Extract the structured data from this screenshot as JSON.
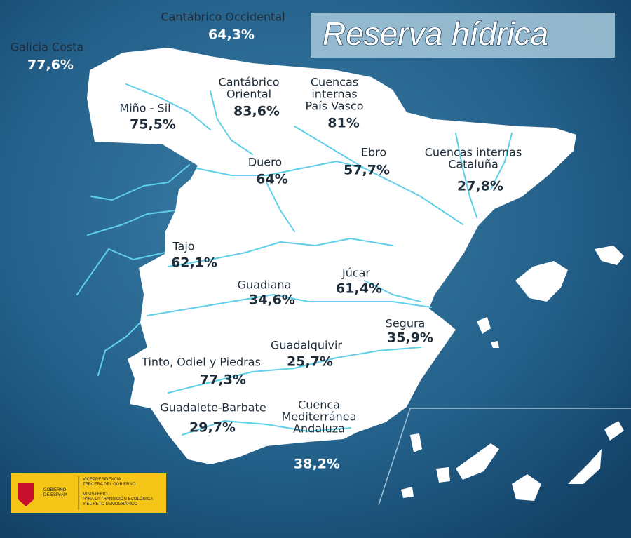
{
  "title": "Reserva hídrica",
  "basins": [
    {
      "name": [
        "Cantábrico Occidental"
      ],
      "value": "64,3%"
    },
    {
      "name": [
        "Galicia Costa"
      ],
      "value": "77,6%"
    },
    {
      "name": [
        "Miño - Sil"
      ],
      "value": "75,5%"
    },
    {
      "name": [
        "Cantábrico",
        "Oriental"
      ],
      "value": "83,6%"
    },
    {
      "name": [
        "Cuencas",
        "internas",
        "País Vasco"
      ],
      "value": "81%"
    },
    {
      "name": [
        "Ebro"
      ],
      "value": "57,7%"
    },
    {
      "name": [
        "Cuencas internas",
        "Cataluña"
      ],
      "value": "27,8%"
    },
    {
      "name": [
        "Duero"
      ],
      "value": "64%"
    },
    {
      "name": [
        "Tajo"
      ],
      "value": "62,1%"
    },
    {
      "name": [
        "Guadiana"
      ],
      "value": "34,6%"
    },
    {
      "name": [
        "Júcar"
      ],
      "value": "61,4%"
    },
    {
      "name": [
        "Segura"
      ],
      "value": "35,9%"
    },
    {
      "name": [
        "Guadalquivir"
      ],
      "value": "25,7%"
    },
    {
      "name": [
        "Tinto, Odiel y Piedras"
      ],
      "value": "77,3%"
    },
    {
      "name": [
        "Guadalete-Barbate"
      ],
      "value": "29,7%"
    },
    {
      "name": [
        "Cuenca",
        "Mediterránea",
        "Andaluza"
      ],
      "value": "38,2%"
    }
  ],
  "logo": {
    "government": [
      "GOBIERNO",
      "DE ESPAÑA"
    ],
    "vicepresidency": [
      "VICEPRESIDENCIA",
      "TERCERA DEL GOBIERNO"
    ],
    "ministry": [
      "MINISTERIO",
      "PARA LA TRANSICIÓN ECOLÓGICA",
      "Y EL RETO DEMOGRÁFICO"
    ]
  }
}
